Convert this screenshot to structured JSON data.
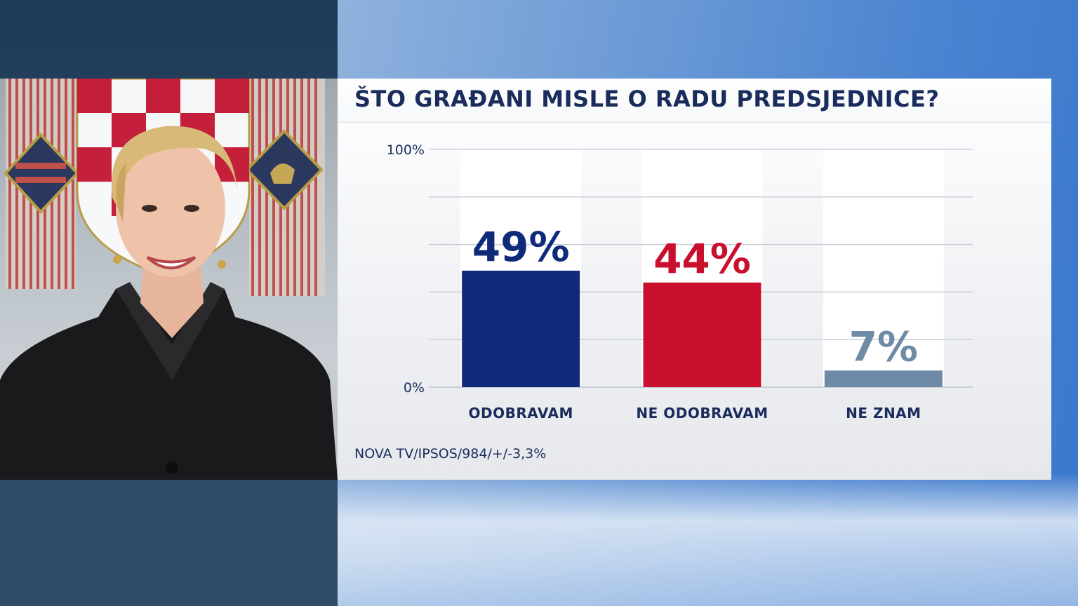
{
  "chart_data": {
    "type": "bar",
    "title": "ŠTO GRAĐANI MISLE O RADU PREDSJEDNICE?",
    "categories": [
      "ODOBRAVAM",
      "NE ODOBRAVAM",
      "NE ZNAM"
    ],
    "values": [
      49,
      44,
      7
    ],
    "value_labels": [
      "49%",
      "44%",
      "7%"
    ],
    "colors": [
      "#102a7a",
      "#c8102e",
      "#6f8aa6"
    ],
    "ylim": [
      0,
      100
    ],
    "y_tick_labels": [
      "0%",
      "100%"
    ],
    "grid": true,
    "legend": "none"
  },
  "source": "NOVA TV/IPSOS/984/+/-3,3%",
  "colors": {
    "title": "#1a2c5c",
    "panel": "#ffffff",
    "grid": "#c9ced6"
  }
}
